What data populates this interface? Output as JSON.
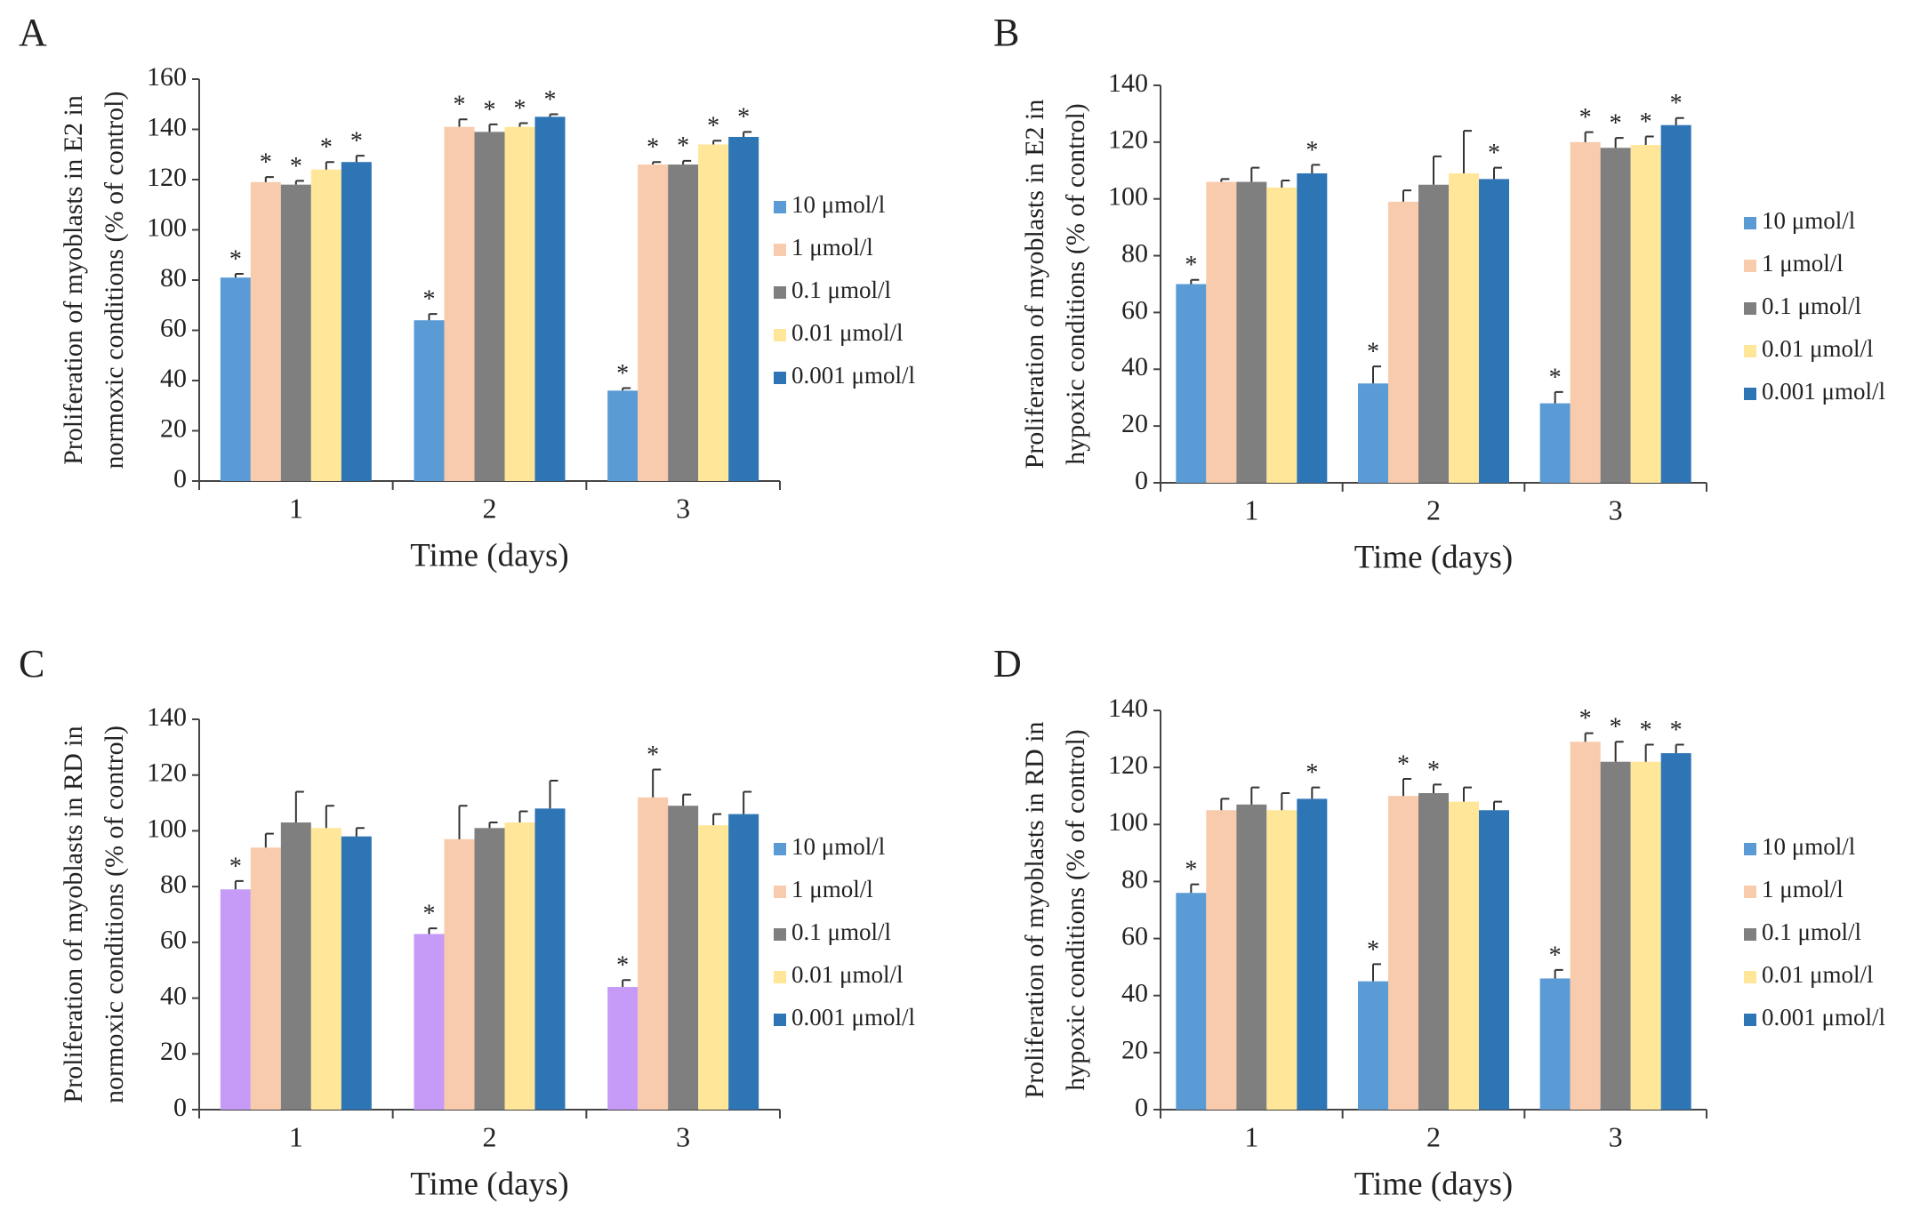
{
  "chart_data": [
    {
      "type": "bar",
      "panel_label": "A",
      "ylabel": [
        "Proliferation of myoblasts in E2 in",
        "normoxic conditions (% of control)"
      ],
      "xlabel": "Time (days)",
      "categories": [
        "1",
        "2",
        "3"
      ],
      "ylim": [
        0,
        160
      ],
      "yticks": [
        0,
        20,
        40,
        60,
        80,
        100,
        120,
        140,
        160
      ],
      "annotation_symbol": "*",
      "series": [
        {
          "name": "10 μmol/l",
          "color": "#5b9bd5",
          "values": [
            81,
            64,
            36
          ],
          "errors": [
            1.5,
            2.5,
            1
          ],
          "significant": [
            true,
            true,
            true
          ]
        },
        {
          "name": "1 μmol/l",
          "color": "#f8cbad",
          "values": [
            119,
            141,
            126
          ],
          "errors": [
            2,
            3,
            1
          ],
          "significant": [
            true,
            true,
            true
          ]
        },
        {
          "name": "0.1 μmol/l",
          "color": "#7f7f7f",
          "values": [
            118,
            139,
            126
          ],
          "errors": [
            1.5,
            3,
            1.5
          ],
          "significant": [
            true,
            true,
            true
          ]
        },
        {
          "name": "0.01 μmol/l",
          "color": "#ffe699",
          "values": [
            124,
            141,
            134
          ],
          "errors": [
            3,
            1.5,
            1.5
          ],
          "significant": [
            true,
            true,
            true
          ]
        },
        {
          "name": "0.001 μmol/l",
          "color": "#2e75b6",
          "values": [
            127,
            145,
            137
          ],
          "errors": [
            2.5,
            1,
            2
          ],
          "significant": [
            true,
            true,
            true
          ]
        }
      ]
    },
    {
      "type": "bar",
      "panel_label": "B",
      "ylabel": [
        "Proliferation of myoblasts in E2 in",
        "hypoxic conditions (% of control)"
      ],
      "xlabel": "Time (days)",
      "categories": [
        "1",
        "2",
        "3"
      ],
      "ylim": [
        0,
        140
      ],
      "yticks": [
        0,
        20,
        40,
        60,
        80,
        100,
        120,
        140
      ],
      "annotation_symbol": "*",
      "series": [
        {
          "name": "10 μmol/l",
          "color": "#5b9bd5",
          "values": [
            70,
            35,
            28
          ],
          "errors": [
            1.5,
            6,
            4
          ],
          "significant": [
            true,
            true,
            true
          ]
        },
        {
          "name": "1 μmol/l",
          "color": "#f8cbad",
          "values": [
            106,
            99,
            120
          ],
          "errors": [
            1,
            4,
            3.5
          ],
          "significant": [
            false,
            false,
            true
          ]
        },
        {
          "name": "0.1 μmol/l",
          "color": "#7f7f7f",
          "values": [
            106,
            105,
            118
          ],
          "errors": [
            5,
            10,
            3.5
          ],
          "significant": [
            false,
            false,
            true
          ]
        },
        {
          "name": "0.01 μmol/l",
          "color": "#ffe699",
          "values": [
            104,
            109,
            119
          ],
          "errors": [
            2.5,
            15,
            3
          ],
          "significant": [
            false,
            false,
            true
          ]
        },
        {
          "name": "0.001 μmol/l",
          "color": "#2e75b6",
          "values": [
            109,
            107,
            126
          ],
          "errors": [
            3,
            4,
            2.5
          ],
          "significant": [
            true,
            true,
            true
          ]
        }
      ]
    },
    {
      "type": "bar",
      "panel_label": "C",
      "ylabel": [
        "Proliferation of myoblasts in RD in",
        "normoxic conditions (% of control)"
      ],
      "xlabel": "Time (days)",
      "categories": [
        "1",
        "2",
        "3"
      ],
      "ylim": [
        0,
        140
      ],
      "yticks": [
        0,
        20,
        40,
        60,
        80,
        100,
        120,
        140
      ],
      "annotation_symbol": "*",
      "series": [
        {
          "name": "10 μmol/l",
          "color": "#5b9bd5",
          "bar_color": "#c59bf7",
          "values": [
            79,
            63,
            44
          ],
          "errors": [
            3,
            2,
            2.5
          ],
          "significant": [
            true,
            true,
            true
          ]
        },
        {
          "name": "1 μmol/l",
          "color": "#f8cbad",
          "values": [
            94,
            97,
            112
          ],
          "errors": [
            5,
            12,
            10
          ],
          "significant": [
            false,
            false,
            true
          ]
        },
        {
          "name": "0.1 μmol/l",
          "color": "#7f7f7f",
          "values": [
            103,
            101,
            109
          ],
          "errors": [
            11,
            2,
            4
          ],
          "significant": [
            false,
            false,
            false
          ]
        },
        {
          "name": "0.01 μmol/l",
          "color": "#ffe699",
          "values": [
            101,
            103,
            102
          ],
          "errors": [
            8,
            4,
            4
          ],
          "significant": [
            false,
            false,
            false
          ]
        },
        {
          "name": "0.001 μmol/l",
          "color": "#2e75b6",
          "values": [
            98,
            108,
            106
          ],
          "errors": [
            3,
            10,
            8
          ],
          "significant": [
            false,
            false,
            false
          ]
        }
      ]
    },
    {
      "type": "bar",
      "panel_label": "D",
      "ylabel": [
        "Proliferation of myoblasts in RD in",
        "hypoxic conditions (% of control)"
      ],
      "xlabel": "Time (days)",
      "categories": [
        "1",
        "2",
        "3"
      ],
      "ylim": [
        0,
        140
      ],
      "yticks": [
        0,
        20,
        40,
        60,
        80,
        100,
        120,
        140
      ],
      "annotation_symbol": "*",
      "series": [
        {
          "name": "10 μmol/l",
          "color": "#5b9bd5",
          "values": [
            76,
            45,
            46
          ],
          "errors": [
            3,
            6,
            3
          ],
          "significant": [
            true,
            true,
            true
          ]
        },
        {
          "name": "1 μmol/l",
          "color": "#f8cbad",
          "values": [
            105,
            110,
            129
          ],
          "errors": [
            4,
            6,
            3
          ],
          "significant": [
            false,
            true,
            true
          ]
        },
        {
          "name": "0.1 μmol/l",
          "color": "#7f7f7f",
          "values": [
            107,
            111,
            122
          ],
          "errors": [
            6,
            3,
            7
          ],
          "significant": [
            false,
            true,
            true
          ]
        },
        {
          "name": "0.01 μmol/l",
          "color": "#ffe699",
          "values": [
            105,
            108,
            122
          ],
          "errors": [
            6,
            5,
            6
          ],
          "significant": [
            false,
            false,
            true
          ]
        },
        {
          "name": "0.001 μmol/l",
          "color": "#2e75b6",
          "values": [
            109,
            105,
            125
          ],
          "errors": [
            4,
            3,
            3
          ],
          "significant": [
            true,
            false,
            true
          ]
        }
      ]
    }
  ]
}
